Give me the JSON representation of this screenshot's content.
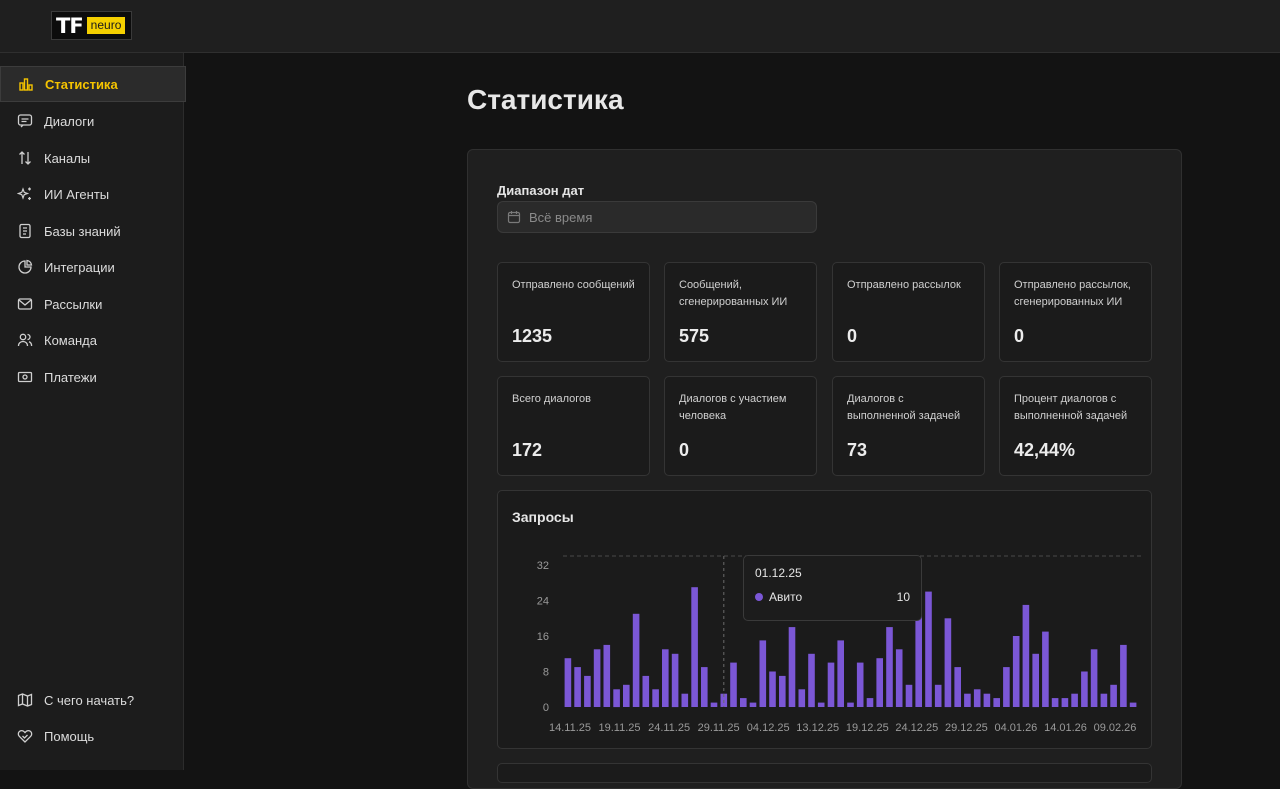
{
  "logo": {
    "tf": "TF",
    "neuro": "neuro"
  },
  "sidebar": {
    "items": [
      {
        "label": "Статистика",
        "icon": "bar-chart-icon"
      },
      {
        "label": "Диалоги",
        "icon": "message-icon"
      },
      {
        "label": "Каналы",
        "icon": "arrows-updown-icon"
      },
      {
        "label": "ИИ Агенты",
        "icon": "sparkles-icon"
      },
      {
        "label": "Базы знаний",
        "icon": "book-icon"
      },
      {
        "label": "Интеграции",
        "icon": "pie-icon"
      },
      {
        "label": "Рассылки",
        "icon": "mail-icon"
      },
      {
        "label": "Команда",
        "icon": "users-icon"
      },
      {
        "label": "Платежи",
        "icon": "money-icon"
      }
    ],
    "footer": [
      {
        "label": "С чего начать?",
        "icon": "map-icon"
      },
      {
        "label": "Помощь",
        "icon": "heart-handshake-icon"
      }
    ]
  },
  "main": {
    "title": "Статистика",
    "date_range": {
      "label": "Диапазон дат",
      "placeholder": "Всё время"
    },
    "cards": [
      {
        "label": "Отправлено сообщений",
        "value": "1235"
      },
      {
        "label": "Сообщений, сгенерированных ИИ",
        "value": "575"
      },
      {
        "label": "Отправлено рассылок",
        "value": "0"
      },
      {
        "label": "Отправлено рассылок, сгенерированных ИИ",
        "value": "0"
      },
      {
        "label": "Всего диалогов",
        "value": "172"
      },
      {
        "label": "Диалогов с участием человека",
        "value": "0"
      },
      {
        "label": "Диалогов с выполненной задачей",
        "value": "73"
      },
      {
        "label": "Процент диалогов с выполненной задачей",
        "value": "42,44%"
      }
    ]
  },
  "tooltip": {
    "date": "01.12.25",
    "series": "Авито",
    "value": "10"
  },
  "colors": {
    "accent": "#f5c400",
    "bar": "#7b57d6",
    "background": "#131313"
  },
  "chart_data": {
    "type": "bar",
    "title": "Запросы",
    "ylim": [
      0,
      32
    ],
    "yticks": [
      0,
      8,
      16,
      24,
      32
    ],
    "xtick_labels": [
      "14.11.25",
      "19.11.25",
      "24.11.25",
      "29.11.25",
      "04.12.25",
      "13.12.25",
      "19.12.25",
      "24.12.25",
      "29.12.25",
      "04.01.26",
      "14.01.26",
      "09.02.26"
    ],
    "series": [
      {
        "name": "Авито",
        "values": [
          11,
          9,
          7,
          13,
          14,
          4,
          5,
          21,
          7,
          4,
          13,
          12,
          3,
          27,
          9,
          1,
          3,
          10,
          2,
          1,
          15,
          8,
          7,
          18,
          4,
          12,
          1,
          10,
          15,
          1,
          10,
          2,
          11,
          18,
          13,
          5,
          22,
          26,
          5,
          20,
          9,
          3,
          4,
          3,
          2,
          9,
          16,
          23,
          12,
          17,
          2,
          2,
          3,
          8,
          13,
          3,
          5,
          14,
          1
        ]
      }
    ],
    "legend": "none",
    "grid": false
  }
}
